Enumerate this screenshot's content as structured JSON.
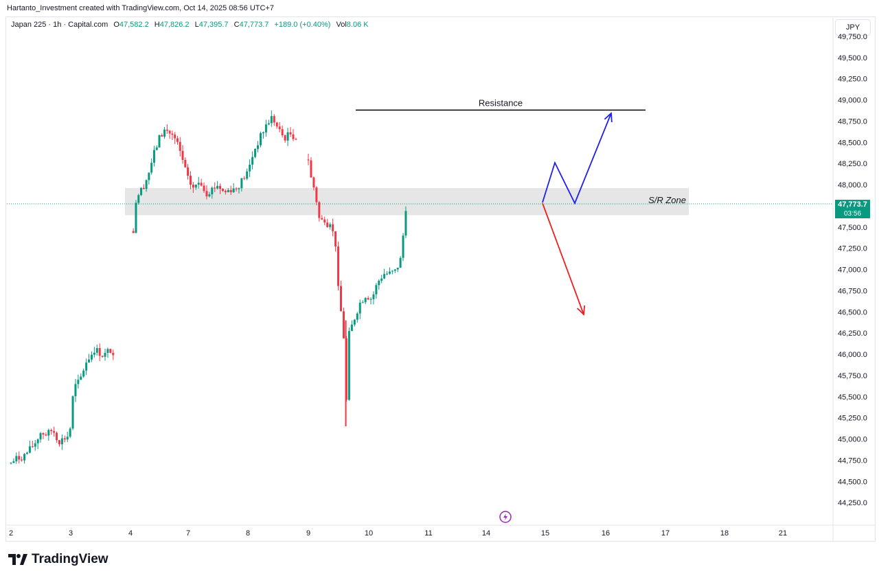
{
  "header": {
    "credit": "Hartanto_Investment created with TradingView.com, Oct 14, 2025 08:56 UTC+7"
  },
  "legend": {
    "symbol": "Japan 225 · 1h · Capital.com",
    "open_label": "O",
    "open": "47,582.2",
    "high_label": "H",
    "high": "47,826.2",
    "low_label": "L",
    "low": "47,395.7",
    "close_label": "C",
    "close": "47,773.7",
    "change": "+189.0 (+0.40%)",
    "vol_label": "Vol",
    "vol": "8.06 K"
  },
  "currency": "JPY",
  "last_price": {
    "value": "47,773.7",
    "countdown": "03:56"
  },
  "brand": "TradingView",
  "colors": {
    "up": "#089981",
    "down": "#f23645",
    "zone": "#e6e6e6",
    "blue_arrow": "#1e1ef0",
    "red_arrow": "#f01e1e"
  },
  "chart_data": {
    "type": "candlestick",
    "instrument": "Japan 225",
    "interval": "1h",
    "ylim": [
      44100,
      49850
    ],
    "y_ticks": [
      44250,
      44500,
      44750,
      45000,
      45250,
      45500,
      45750,
      46000,
      46250,
      46500,
      46750,
      47000,
      47250,
      47500,
      47750,
      48000,
      48250,
      48500,
      48750,
      49000,
      49250,
      49500,
      49750
    ],
    "y_tick_labels": [
      "44,250.0",
      "44,500.0",
      "44,750.0",
      "45,000.0",
      "45,250.0",
      "45,500.0",
      "45,750.0",
      "46,000.0",
      "46,250.0",
      "46,500.0",
      "46,750.0",
      "47,000.0",
      "47,250.0",
      "47,500.0",
      "47,750.0",
      "48,000.0",
      "48,250.0",
      "48,500.0",
      "48,750.0",
      "49,000.0",
      "49,250.0",
      "49,500.0",
      "49,750.0"
    ],
    "x_ticks": [
      "2",
      "3",
      "4",
      "7",
      "8",
      "9",
      "10",
      "11",
      "14",
      "15",
      "16",
      "17",
      "18",
      "21"
    ],
    "x_tick_pos": [
      0,
      1,
      2,
      3,
      4,
      5,
      6,
      7,
      8,
      9,
      10,
      11,
      12,
      13
    ],
    "close_path": [
      [
        0,
        44720
      ],
      [
        0.1,
        44770
      ],
      [
        0.2,
        44790
      ],
      [
        0.3,
        44860
      ],
      [
        0.4,
        44950
      ],
      [
        0.5,
        45080
      ],
      [
        0.6,
        45050
      ],
      [
        0.7,
        45110
      ],
      [
        0.8,
        44970
      ],
      [
        0.9,
        45010
      ],
      [
        0.98,
        45050
      ],
      [
        1.05,
        45600
      ],
      [
        1.15,
        45680
      ],
      [
        1.25,
        45900
      ],
      [
        1.4,
        46060
      ],
      [
        1.55,
        45980
      ],
      [
        1.65,
        46050
      ],
      [
        1.75,
        46020
      ],
      [
        2.05,
        47400
      ],
      [
        2.1,
        47850
      ],
      [
        2.2,
        47950
      ],
      [
        2.3,
        48100
      ],
      [
        2.4,
        48350
      ],
      [
        2.5,
        48550
      ],
      [
        2.6,
        48650
      ],
      [
        2.7,
        48600
      ],
      [
        2.8,
        48500
      ],
      [
        2.9,
        48300
      ],
      [
        3.0,
        48050
      ],
      [
        3.1,
        47950
      ],
      [
        3.2,
        48050
      ],
      [
        3.3,
        47900
      ],
      [
        3.4,
        47950
      ],
      [
        3.5,
        48000
      ],
      [
        3.6,
        47900
      ],
      [
        3.7,
        47950
      ],
      [
        3.8,
        47950
      ],
      [
        3.9,
        48050
      ],
      [
        4.0,
        48150
      ],
      [
        4.1,
        48400
      ],
      [
        4.2,
        48550
      ],
      [
        4.3,
        48700
      ],
      [
        4.4,
        48800
      ],
      [
        4.5,
        48650
      ],
      [
        4.6,
        48550
      ],
      [
        4.7,
        48600
      ],
      [
        4.8,
        48550
      ],
      [
        5.0,
        48300
      ],
      [
        5.05,
        48050
      ],
      [
        5.1,
        47950
      ],
      [
        5.15,
        47750
      ],
      [
        5.2,
        47500
      ],
      [
        5.25,
        47650
      ],
      [
        5.3,
        47520
      ],
      [
        5.35,
        47600
      ],
      [
        5.45,
        47300
      ],
      [
        5.5,
        46700
      ],
      [
        5.55,
        46450
      ],
      [
        5.6,
        46100
      ],
      [
        5.62,
        45200
      ],
      [
        5.66,
        46200
      ],
      [
        5.75,
        46400
      ],
      [
        5.85,
        46600
      ],
      [
        5.95,
        46700
      ],
      [
        6.05,
        46650
      ],
      [
        6.15,
        46850
      ],
      [
        6.25,
        46950
      ],
      [
        6.35,
        46950
      ],
      [
        6.45,
        46980
      ],
      [
        6.55,
        47150
      ],
      [
        6.6,
        47650
      ],
      [
        6.63,
        47773.7
      ]
    ],
    "annotations": [
      {
        "type": "line",
        "label": "Resistance",
        "y": 48880,
        "x_from": 5.8,
        "x_to": 10.1
      },
      {
        "type": "zone",
        "label": "S/R Zone",
        "y_from": 47640,
        "y_to": 47960,
        "x_from": 2.0,
        "x_to": 11.3
      },
      {
        "type": "arrow",
        "color": "blue",
        "points": [
          [
            9.0,
            47780
          ],
          [
            9.2,
            48260
          ],
          [
            9.5,
            47780
          ],
          [
            9.85,
            48850
          ]
        ]
      },
      {
        "type": "arrow",
        "color": "red",
        "points": [
          [
            9.0,
            47780
          ],
          [
            9.55,
            46500
          ]
        ]
      }
    ],
    "last_price": 47773.7
  }
}
